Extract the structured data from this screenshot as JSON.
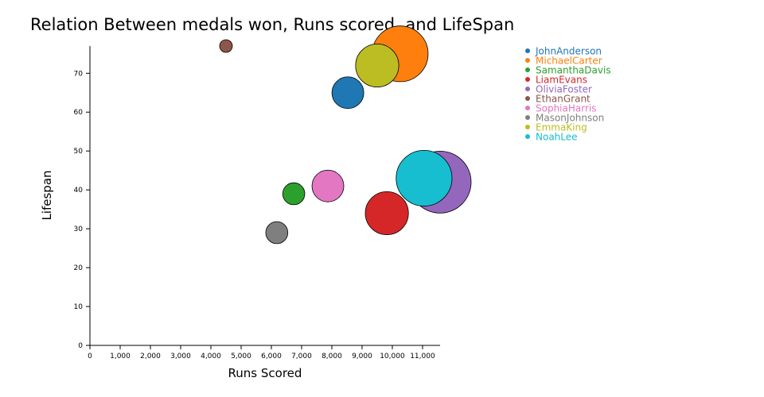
{
  "chart_data": {
    "type": "scatter",
    "title": "Relation Between medals won, Runs scored, and LifeSpan",
    "xlabel": "Runs Scored",
    "ylabel": "Lifespan",
    "xlim": [
      0,
      11580
    ],
    "ylim": [
      0,
      77
    ],
    "xticks": [
      0,
      1000,
      2000,
      3000,
      4000,
      5000,
      6000,
      7000,
      8000,
      9000,
      10000,
      11000
    ],
    "xtick_labels": [
      "0",
      "1,000",
      "2,000",
      "3,000",
      "4,000",
      "5,000",
      "6,000",
      "7,000",
      "8,000",
      "9,000",
      "10,000",
      "11,000"
    ],
    "yticks": [
      0,
      10,
      20,
      30,
      40,
      50,
      60,
      70
    ],
    "ytick_labels": [
      "0",
      "10",
      "20",
      "30",
      "40",
      "50",
      "60",
      "70"
    ],
    "size_encodes": "medals won",
    "legend_position": "top-right",
    "points": [
      {
        "name": "JohnAnderson",
        "runs": 8530,
        "lifespan": 65,
        "medals": 25,
        "color": "#1f77b4"
      },
      {
        "name": "MichaelCarter",
        "runs": 10260,
        "lifespan": 75,
        "medals": 77,
        "color": "#ff7f0e"
      },
      {
        "name": "SamanthaDavis",
        "runs": 6740,
        "lifespan": 39,
        "medals": 12,
        "color": "#2ca02c"
      },
      {
        "name": "LiamEvans",
        "runs": 9820,
        "lifespan": 34,
        "medals": 46,
        "color": "#d62728"
      },
      {
        "name": "OliviaFoster",
        "runs": 11580,
        "lifespan": 42,
        "medals": 95,
        "color": "#9467bd"
      },
      {
        "name": "EthanGrant",
        "runs": 4500,
        "lifespan": 77,
        "medals": 4,
        "color": "#8c564b"
      },
      {
        "name": "SophiaHarris",
        "runs": 7870,
        "lifespan": 41,
        "medals": 25,
        "color": "#e377c2"
      },
      {
        "name": "MasonJohnson",
        "runs": 6180,
        "lifespan": 29,
        "medals": 12,
        "color": "#7f7f7f"
      },
      {
        "name": "EmmaKing",
        "runs": 9500,
        "lifespan": 72,
        "medals": 46,
        "color": "#bcbd22"
      },
      {
        "name": "NoahLee",
        "runs": 11050,
        "lifespan": 43,
        "medals": 77,
        "color": "#17becf"
      }
    ]
  }
}
